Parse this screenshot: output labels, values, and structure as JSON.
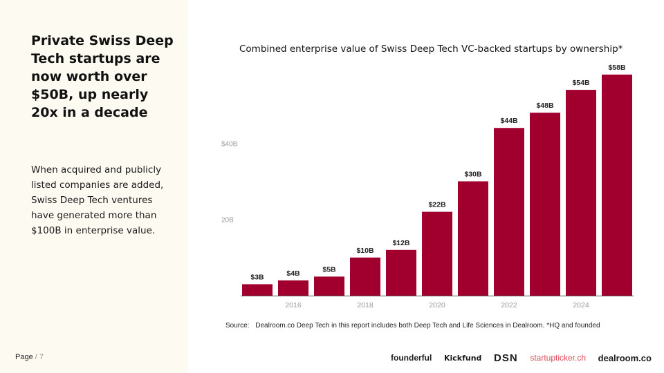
{
  "left": {
    "headline": "Private Swiss Deep Tech startups are now worth over $50B, up nearly 20x in a decade",
    "body": "When acquired and publicly listed companies are added, Swiss Deep Tech ventures have generated more than $100B in enterprise value."
  },
  "footer": {
    "page_label": "Page",
    "page_sep": "/",
    "page_number": "7",
    "source_label": "Source:",
    "source_text": "Dealroom.co  Deep Tech in this report includes both Deep Tech and Life Sciences in Dealroom. *HQ and founded",
    "logos": [
      "founderful",
      "Kickfund",
      "DSN",
      "startupticker.ch",
      "dealroom.co"
    ]
  },
  "chart_data": {
    "type": "bar",
    "title": "Combined enterprise value of Swiss Deep Tech VC-backed startups by ownership*",
    "xlabel": "",
    "ylabel": "",
    "x": [
      2015,
      2016,
      2017,
      2018,
      2019,
      2020,
      2021,
      2022,
      2023,
      2024,
      2025
    ],
    "values": [
      3,
      4,
      5,
      10,
      12,
      22,
      30,
      44,
      48,
      54,
      58
    ],
    "data_labels": [
      "$3B",
      "$4B",
      "$5B",
      "$10B",
      "$12B",
      "$22B",
      "$30B",
      "$44B",
      "$48B",
      "$54B",
      "$58B"
    ],
    "x_tick_values": [
      2016,
      2018,
      2020,
      2022,
      2024
    ],
    "x_tick_labels": [
      "2016",
      "2018",
      "2020",
      "2022",
      "2024"
    ],
    "y_tick_values": [
      20,
      40
    ],
    "y_tick_labels": [
      "20B",
      "$40B"
    ],
    "ylim": [
      0,
      60
    ],
    "grid": false,
    "bar_color": "#a1002e"
  }
}
